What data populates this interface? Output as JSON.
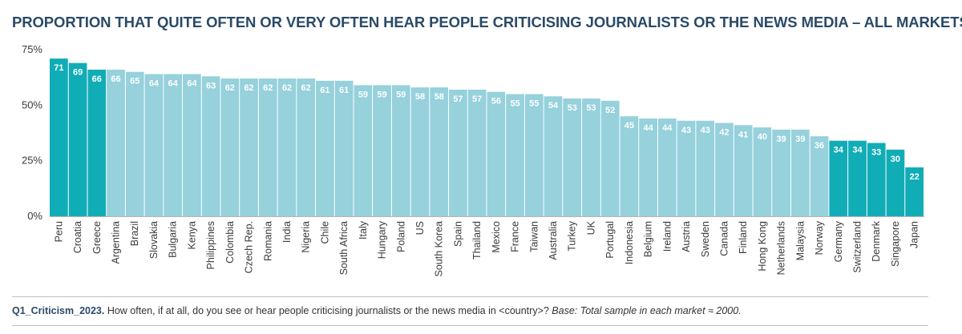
{
  "chart_data": {
    "type": "bar",
    "title": "PROPORTION THAT QUITE OFTEN OR VERY OFTEN HEAR PEOPLE CRITICISING JOURNALISTS OR THE NEWS MEDIA – ALL MARKETS",
    "xlabel": "",
    "ylabel": "",
    "ylim": [
      0,
      75
    ],
    "yticks": [
      0,
      25,
      50,
      75
    ],
    "ytick_labels": [
      "0%",
      "25%",
      "50%",
      "75%"
    ],
    "grid": false,
    "categories": [
      "Peru",
      "Croatia",
      "Greece",
      "Argentina",
      "Brazil",
      "Slovakia",
      "Bulgaria",
      "Kenya",
      "Philippines",
      "Colombia",
      "Czech Rep.",
      "Romania",
      "India",
      "Nigeria",
      "Chile",
      "South Africa",
      "Italy",
      "Hungary",
      "Poland",
      "US",
      "South Korea",
      "Spain",
      "Thailand",
      "Mexico",
      "France",
      "Taiwan",
      "Australia",
      "Turkey",
      "UK",
      "Portugal",
      "Indonesia",
      "Belgium",
      "Ireland",
      "Austria",
      "Sweden",
      "Canada",
      "Finland",
      "Hong Kong",
      "Netherlands",
      "Malaysia",
      "Norway",
      "Germany",
      "Switzerland",
      "Denmark",
      "Singapore",
      "Japan"
    ],
    "values": [
      71,
      69,
      66,
      66,
      65,
      64,
      64,
      64,
      63,
      62,
      62,
      62,
      62,
      62,
      61,
      61,
      59,
      59,
      59,
      58,
      58,
      57,
      57,
      56,
      55,
      55,
      54,
      53,
      53,
      52,
      45,
      44,
      44,
      43,
      43,
      42,
      41,
      40,
      39,
      39,
      36,
      34,
      34,
      33,
      30,
      22
    ],
    "highlight": [
      true,
      true,
      true,
      false,
      false,
      false,
      false,
      false,
      false,
      false,
      false,
      false,
      false,
      false,
      false,
      false,
      false,
      false,
      false,
      false,
      false,
      false,
      false,
      false,
      false,
      false,
      false,
      false,
      false,
      false,
      false,
      false,
      false,
      false,
      false,
      false,
      false,
      false,
      false,
      false,
      false,
      true,
      true,
      true,
      true,
      true
    ],
    "colors": {
      "highlight": "#11adb7",
      "normal": "#96d1dc"
    }
  },
  "footnote": {
    "question_id": "Q1_Criticism_2023.",
    "question_text": " How often, if at all, do you see or hear people criticising journalists or the news media in <country>? ",
    "base": "Base: Total sample in each market ≈ 2000."
  }
}
